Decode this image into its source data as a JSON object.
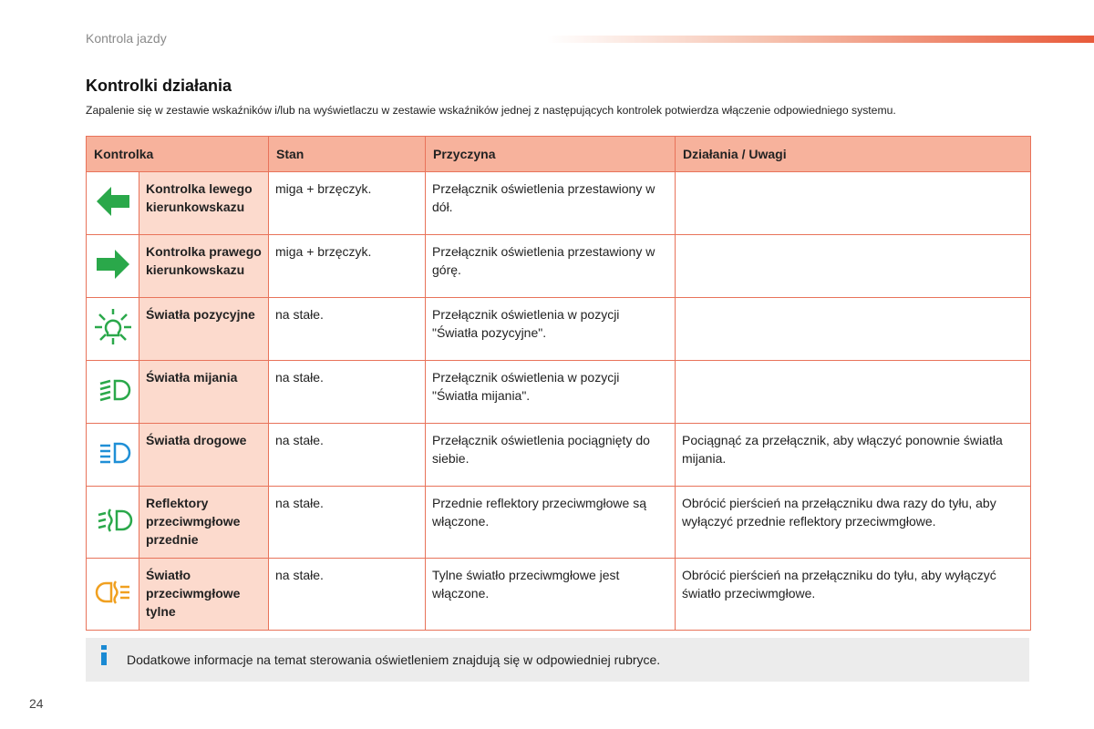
{
  "header": {
    "section": "Kontrola jazdy",
    "page_number": "24"
  },
  "title": "Kontrolki działania",
  "intro": "Zapalenie się w zestawie wskaźników i/lub na wyświetlaczu w zestawie wskaźników jednej z następujących kontrolek potwierdza włączenie odpowiedniego systemu.",
  "table": {
    "columns": [
      "Kontrolka",
      "Stan",
      "Przyczyna",
      "Działania / Uwagi"
    ],
    "rows": [
      {
        "name": "Kontrolka lewego kierunkowskazu",
        "state": "miga + brzęczyk.",
        "cause": "Przełącznik oświetlenia przestawiony w dół."
      },
      {
        "name": "Kontrolka prawego kierunkowskazu",
        "state": "miga + brzęczyk.",
        "cause": "Przełącznik oświetlenia przestawiony w górę."
      },
      {
        "name": "Światła pozycyjne",
        "state": "na stałe.",
        "cause": "Przełącznik oświetlenia w pozycji \"Światła pozycyjne\"."
      },
      {
        "name": "Światła mijania",
        "state": "na stałe.",
        "cause": "Przełącznik oświetlenia w pozycji \"Światła mijania\"."
      },
      {
        "name": "Światła drogowe",
        "state": "na stałe.",
        "cause": "Przełącznik oświetlenia pociągnięty do siebie.",
        "notes": "Pociągnąć za przełącznik, aby włączyć ponownie światła mijania."
      },
      {
        "name": "Reflektory przeciwmgłowe przednie",
        "state": "na stałe.",
        "cause": "Przednie reflektory przeciwmgłowe są włączone.",
        "notes": "Obrócić pierścień na przełączniku dwa razy do tyłu, aby wyłączyć przednie reflektory przeciwmgłowe."
      },
      {
        "name": "Światło przeciwmgłowe tylne",
        "state": "na stałe.",
        "cause": "Tylne światło przeciwmgłowe jest włączone.",
        "notes": "Obrócić pierścień na przełączniku do tyłu, aby wyłączyć światło przeciwmgłowe."
      }
    ]
  },
  "info": "Dodatkowe informacje na temat sterowania oświetleniem znajdują się w odpowiedniej rubryce."
}
